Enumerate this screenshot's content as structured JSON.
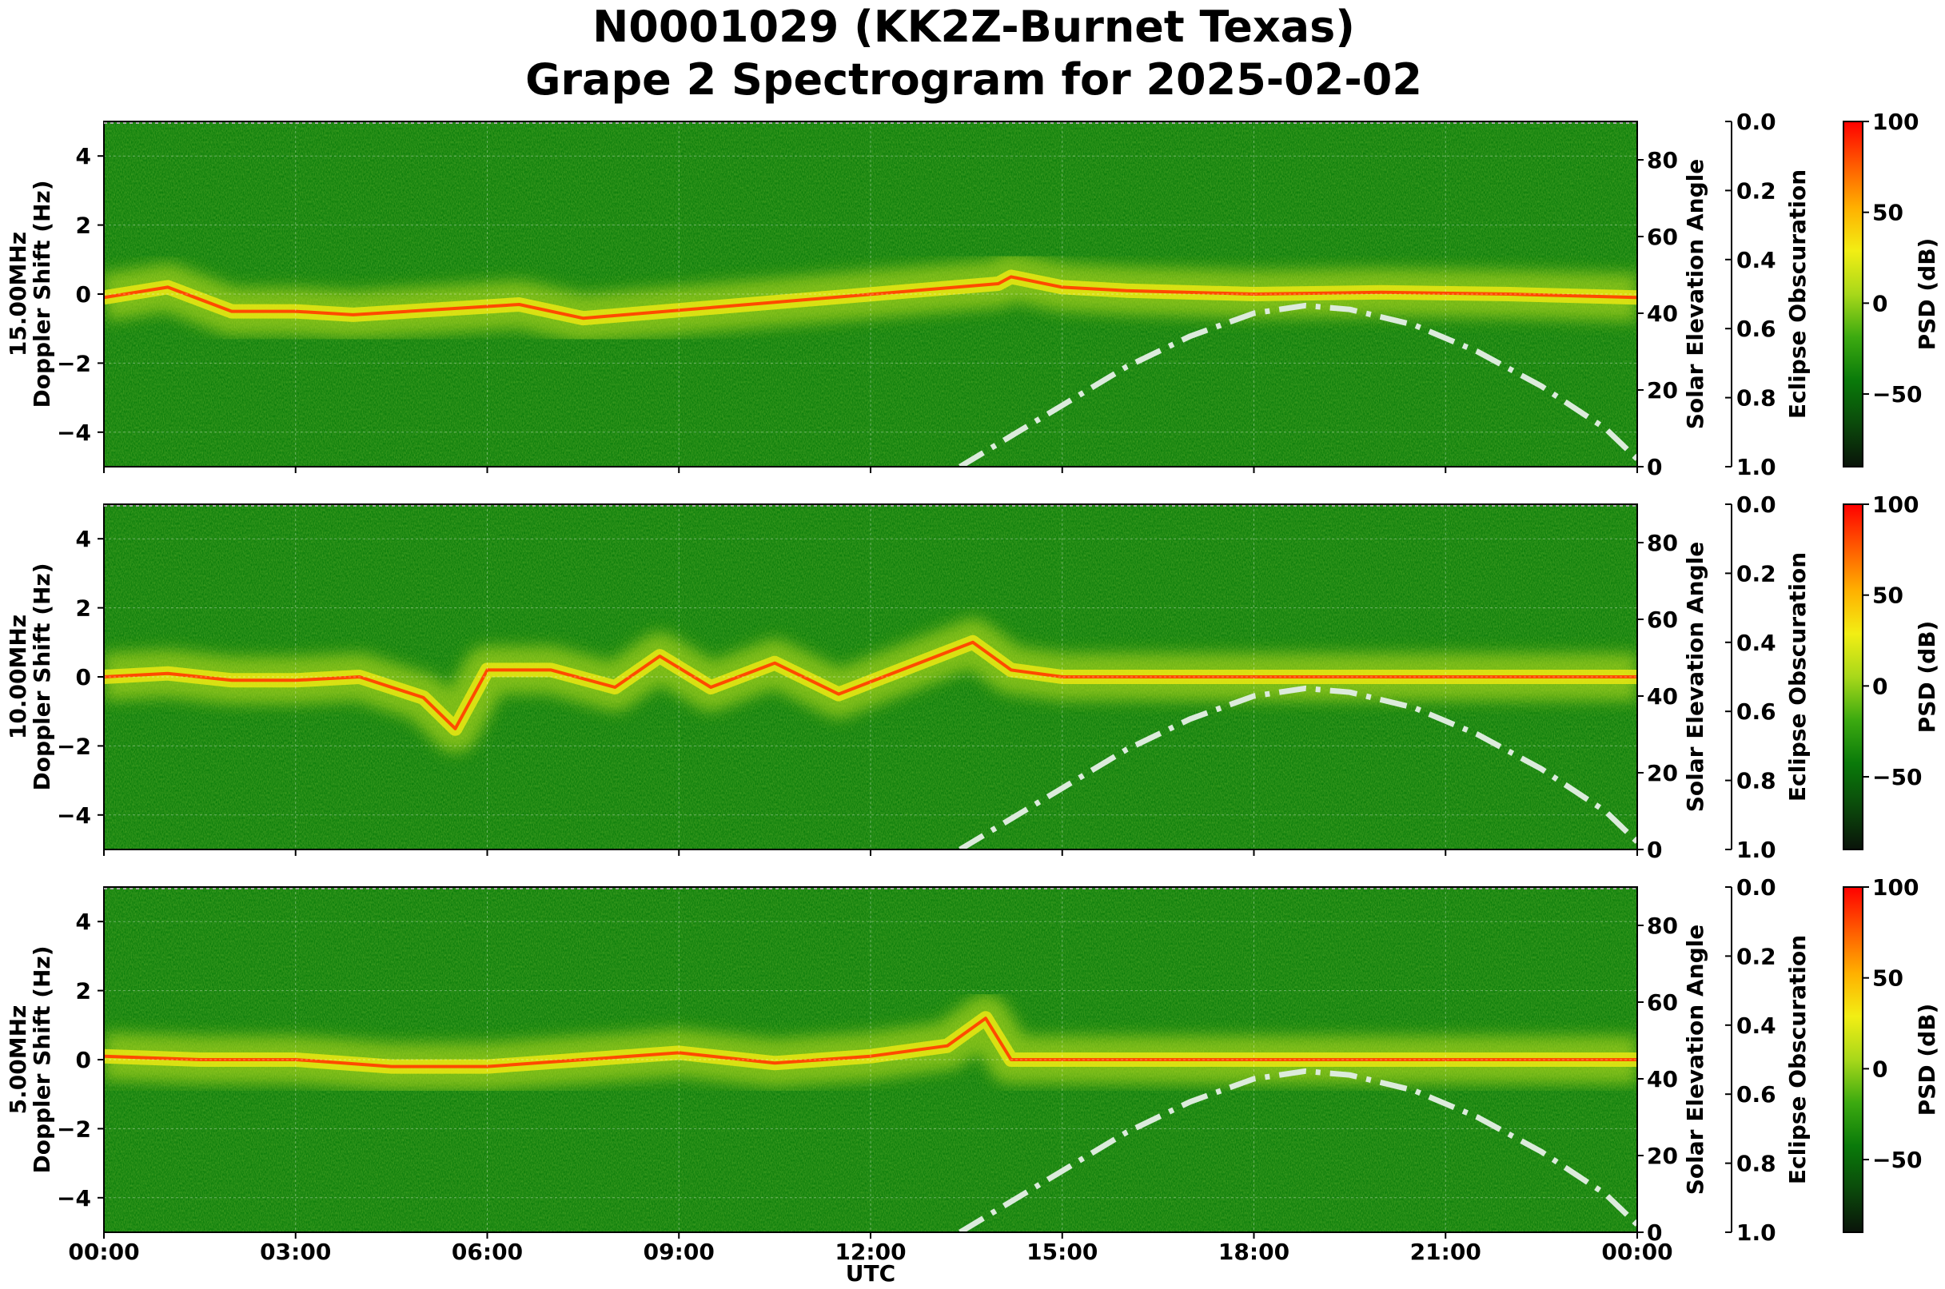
{
  "title_line1": "N0001029 (KK2Z-Burnet Texas)",
  "title_line2": "Grape 2 Spectrogram for 2025-02-02",
  "xlabel": "UTC",
  "x_ticks": [
    "00:00",
    "03:00",
    "06:00",
    "09:00",
    "12:00",
    "15:00",
    "18:00",
    "21:00",
    "00:00"
  ],
  "doppler_ticks": [
    "4",
    "2",
    "0",
    "−2",
    "−4"
  ],
  "elev_ticks": [
    "80",
    "60",
    "40",
    "20",
    "0"
  ],
  "obsc_ticks": [
    "0.0",
    "0.2",
    "0.4",
    "0.6",
    "0.8",
    "1.0"
  ],
  "psd_ticks": [
    "100",
    "50",
    "0",
    "−50"
  ],
  "elev_label": "Solar Elevation Angle",
  "obsc_label": "Eclipse Obscuration",
  "psd_label": "PSD (dB)",
  "colors": {
    "colormap": [
      "#0a140a",
      "#0b4a0b",
      "#0a7a0a",
      "#3caa10",
      "#a8d81a",
      "#f2ee14",
      "#ffb000",
      "#ff5a00",
      "#ff0000"
    ],
    "elevation_line": "#dcebdc"
  },
  "chart_data": [
    {
      "type": "heatmap",
      "band": "15.00MHz",
      "ylabel_line1": "15.00MHz",
      "ylabel_line2": "Doppler Shift (Hz)",
      "x_range_utc_hours": [
        0,
        24
      ],
      "ylim_doppler_hz": [
        -5,
        5
      ],
      "ylim_solar_elevation_deg": [
        0,
        90
      ],
      "ylim_eclipse_obscuration": [
        1.0,
        0.0
      ],
      "colorbar_range_db": [
        -90,
        100
      ],
      "carrier_doppler_hz": {
        "utc_hours": [
          0,
          1,
          2,
          3,
          3.9,
          6.5,
          7.5,
          14.0,
          14.2,
          15,
          16,
          18,
          20,
          22,
          24
        ],
        "doppler_hz": [
          -0.1,
          0.2,
          -0.5,
          -0.5,
          -0.6,
          -0.3,
          -0.7,
          0.3,
          0.5,
          0.2,
          0.1,
          0.0,
          0.05,
          0.0,
          -0.1
        ]
      },
      "solar_elevation": {
        "utc_hours": [
          13.4,
          14,
          15,
          16,
          17,
          18,
          18.8,
          19.5,
          20.5,
          21.5,
          22.5,
          23.5,
          24
        ],
        "degrees": [
          0,
          6,
          16,
          26,
          34,
          40,
          42,
          41,
          37,
          30,
          21,
          10,
          2
        ]
      }
    },
    {
      "type": "heatmap",
      "band": "10.00MHz",
      "ylabel_line1": "10.00MHz",
      "ylabel_line2": "Doppler Shift (Hz)",
      "x_range_utc_hours": [
        0,
        24
      ],
      "ylim_doppler_hz": [
        -5,
        5
      ],
      "ylim_solar_elevation_deg": [
        0,
        90
      ],
      "ylim_eclipse_obscuration": [
        1.0,
        0.0
      ],
      "colorbar_range_db": [
        -90,
        100
      ],
      "carrier_doppler_hz": {
        "utc_hours": [
          0,
          1,
          2,
          3,
          4,
          5,
          5.5,
          6,
          7,
          8,
          8.7,
          9.5,
          10.5,
          11.5,
          13.6,
          14.2,
          15,
          18,
          21,
          24
        ],
        "doppler_hz": [
          0.0,
          0.1,
          -0.1,
          -0.1,
          0.0,
          -0.6,
          -1.5,
          0.2,
          0.2,
          -0.3,
          0.6,
          -0.3,
          0.4,
          -0.5,
          1.0,
          0.2,
          0.0,
          0.0,
          0.0,
          0.0
        ]
      },
      "solar_elevation": {
        "utc_hours": [
          13.4,
          14,
          15,
          16,
          17,
          18,
          18.8,
          19.5,
          20.5,
          21.5,
          22.5,
          23.5,
          24
        ],
        "degrees": [
          0,
          6,
          16,
          26,
          34,
          40,
          42,
          41,
          37,
          30,
          21,
          10,
          2
        ]
      }
    },
    {
      "type": "heatmap",
      "band": "5.00MHz",
      "ylabel_line1": "5.00MHz",
      "ylabel_line2": "Doppler Shift (Hz)",
      "x_range_utc_hours": [
        0,
        24
      ],
      "ylim_doppler_hz": [
        -5,
        5
      ],
      "ylim_solar_elevation_deg": [
        0,
        90
      ],
      "ylim_eclipse_obscuration": [
        1.0,
        0.0
      ],
      "colorbar_range_db": [
        -90,
        100
      ],
      "carrier_doppler_hz": {
        "utc_hours": [
          0,
          1.5,
          3,
          4.5,
          6,
          7.5,
          9,
          10.5,
          12,
          13.2,
          13.8,
          14.2,
          16,
          18,
          21,
          24
        ],
        "doppler_hz": [
          0.1,
          0.0,
          0.0,
          -0.2,
          -0.2,
          0.0,
          0.2,
          -0.1,
          0.1,
          0.4,
          1.2,
          0.0,
          0.0,
          0.0,
          0.0,
          0.0
        ]
      },
      "solar_elevation": {
        "utc_hours": [
          13.4,
          14,
          15,
          16,
          17,
          18,
          18.8,
          19.5,
          20.5,
          21.5,
          22.5,
          23.5,
          24
        ],
        "degrees": [
          0,
          6,
          16,
          26,
          34,
          40,
          42,
          41,
          37,
          30,
          21,
          10,
          2
        ]
      }
    }
  ]
}
